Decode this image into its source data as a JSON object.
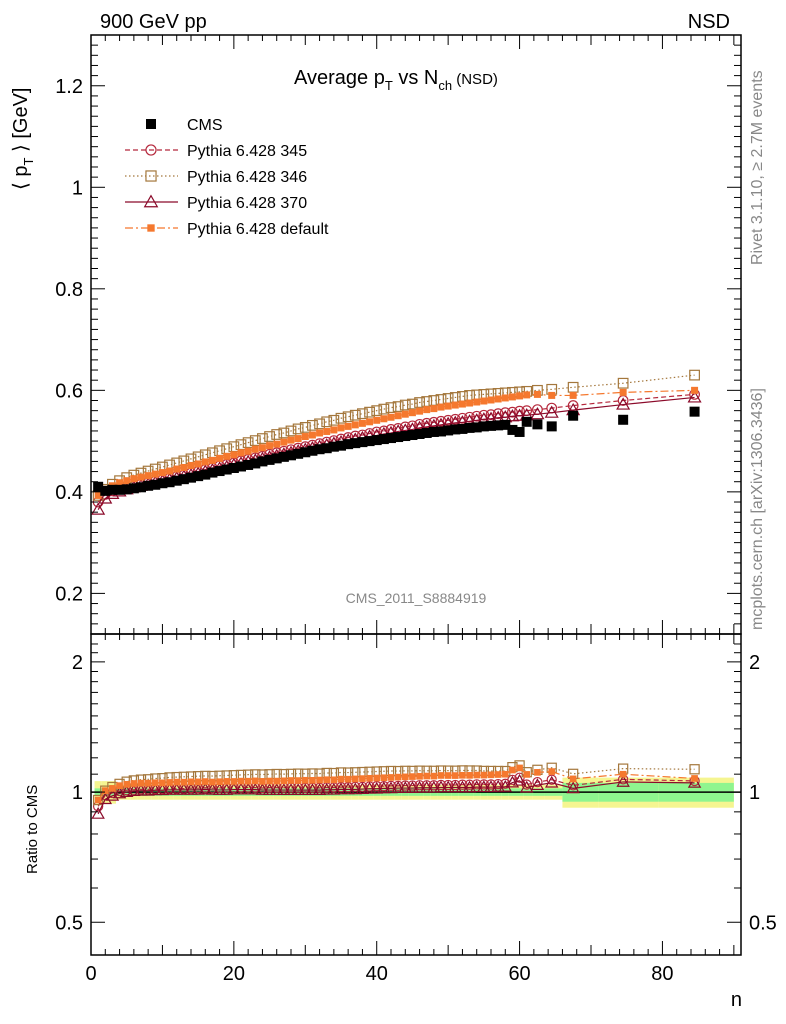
{
  "header": {
    "left": "900 GeV pp",
    "right": "NSD"
  },
  "side_text": {
    "rivet": "Rivet 3.1.10, ≥ 2.7M events",
    "mcplots": "mcplots.cern.ch [arXiv:1306.3436]"
  },
  "analysis_id": "CMS_2011_S8884919",
  "colors": {
    "cms": "#000000",
    "p345": "#b5283c",
    "p346": "#a4773c",
    "p370": "#8b0a2a",
    "pdef": "#f5782e",
    "band_green": "#8ff58f",
    "band_yellow": "#f5f591"
  },
  "chart_data": [
    {
      "type": "scatter",
      "title_main": "Average p",
      "title_sub1": "T",
      "title_mid": " vs N",
      "title_sub2": "ch",
      "title_tail": " (NSD)",
      "ylabel_main": "⟨ p",
      "ylabel_sub": "T",
      "ylabel_tail": " ⟩ [GeV]",
      "xlim": [
        0,
        91
      ],
      "ylim": [
        0.12,
        1.3
      ],
      "y_ticks": [
        0.2,
        0.4,
        0.6,
        0.8,
        1,
        1.2
      ],
      "y_tick_labels": [
        "0.2",
        "0.4",
        "0.6",
        "0.8",
        "1",
        "1.2"
      ],
      "legend_position": "top-left",
      "series": [
        {
          "name": "CMS",
          "marker": "filled-square",
          "x": [
            1,
            2,
            3,
            4,
            5,
            6,
            7,
            8,
            9,
            10,
            11,
            12,
            13,
            14,
            15,
            16,
            17,
            18,
            19,
            20,
            21,
            22,
            23,
            24,
            25,
            26,
            27,
            28,
            29,
            30,
            31,
            32,
            33,
            34,
            35,
            36,
            37,
            38,
            39,
            40,
            41,
            42,
            43,
            44,
            45,
            46,
            47,
            48,
            49,
            50,
            51,
            52,
            53,
            54,
            55,
            56,
            57,
            58,
            59,
            60,
            61,
            62.5,
            64.5,
            67.5,
            74.5,
            84.5
          ],
          "values": [
            0.41,
            0.402,
            0.404,
            0.404,
            0.405,
            0.407,
            0.409,
            0.412,
            0.414,
            0.417,
            0.419,
            0.422,
            0.425,
            0.428,
            0.431,
            0.434,
            0.438,
            0.441,
            0.444,
            0.447,
            0.45,
            0.453,
            0.456,
            0.46,
            0.463,
            0.466,
            0.469,
            0.472,
            0.475,
            0.478,
            0.481,
            0.484,
            0.486,
            0.489,
            0.491,
            0.494,
            0.496,
            0.498,
            0.5,
            0.502,
            0.504,
            0.506,
            0.508,
            0.51,
            0.512,
            0.514,
            0.516,
            0.518,
            0.519,
            0.521,
            0.523,
            0.524,
            0.526,
            0.527,
            0.529,
            0.53,
            0.531,
            0.532,
            0.522,
            0.518,
            0.538,
            0.533,
            0.529,
            0.55,
            0.542,
            0.558
          ]
        },
        {
          "name": "Pythia 6.428 345",
          "marker": "open-circle",
          "line": "dashed",
          "x": [
            1,
            2,
            3,
            4,
            5,
            6,
            7,
            8,
            9,
            10,
            11,
            12,
            13,
            14,
            15,
            16,
            17,
            18,
            19,
            20,
            21,
            22,
            23,
            24,
            25,
            26,
            27,
            28,
            29,
            30,
            31,
            32,
            33,
            34,
            35,
            36,
            37,
            38,
            39,
            40,
            41,
            42,
            43,
            44,
            45,
            46,
            47,
            48,
            49,
            50,
            51,
            52,
            53,
            54,
            55,
            56,
            57,
            58,
            59,
            60,
            61,
            62.5,
            64.5,
            67.5,
            74.5,
            84.5
          ],
          "values": [
            0.38,
            0.395,
            0.402,
            0.406,
            0.409,
            0.412,
            0.415,
            0.418,
            0.421,
            0.424,
            0.427,
            0.43,
            0.433,
            0.437,
            0.44,
            0.444,
            0.447,
            0.451,
            0.454,
            0.457,
            0.461,
            0.464,
            0.467,
            0.47,
            0.474,
            0.477,
            0.48,
            0.483,
            0.486,
            0.489,
            0.492,
            0.495,
            0.498,
            0.501,
            0.504,
            0.507,
            0.51,
            0.512,
            0.515,
            0.518,
            0.52,
            0.523,
            0.525,
            0.528,
            0.53,
            0.533,
            0.535,
            0.537,
            0.539,
            0.541,
            0.543,
            0.545,
            0.547,
            0.549,
            0.551,
            0.552,
            0.554,
            0.556,
            0.557,
            0.559,
            0.56,
            0.562,
            0.565,
            0.57,
            0.58,
            0.592
          ]
        },
        {
          "name": "Pythia 6.428 346",
          "marker": "open-square",
          "line": "dotted",
          "x": [
            1,
            2,
            3,
            4,
            5,
            6,
            7,
            8,
            9,
            10,
            11,
            12,
            13,
            14,
            15,
            16,
            17,
            18,
            19,
            20,
            21,
            22,
            23,
            24,
            25,
            26,
            27,
            28,
            29,
            30,
            31,
            32,
            33,
            34,
            35,
            36,
            37,
            38,
            39,
            40,
            41,
            42,
            43,
            44,
            45,
            46,
            47,
            48,
            49,
            50,
            51,
            52,
            53,
            54,
            55,
            56,
            57,
            58,
            59,
            60,
            61,
            62.5,
            64.5,
            67.5,
            74.5,
            84.5
          ],
          "values": [
            0.393,
            0.405,
            0.415,
            0.422,
            0.428,
            0.433,
            0.437,
            0.441,
            0.445,
            0.449,
            0.453,
            0.457,
            0.461,
            0.465,
            0.469,
            0.473,
            0.477,
            0.481,
            0.485,
            0.489,
            0.493,
            0.497,
            0.501,
            0.505,
            0.509,
            0.513,
            0.516,
            0.52,
            0.524,
            0.527,
            0.531,
            0.534,
            0.538,
            0.541,
            0.545,
            0.548,
            0.551,
            0.554,
            0.557,
            0.56,
            0.563,
            0.566,
            0.568,
            0.571,
            0.573,
            0.576,
            0.578,
            0.58,
            0.582,
            0.584,
            0.586,
            0.588,
            0.59,
            0.591,
            0.592,
            0.593,
            0.594,
            0.595,
            0.596,
            0.597,
            0.598,
            0.6,
            0.602,
            0.606,
            0.614,
            0.63
          ]
        },
        {
          "name": "Pythia 6.428 370",
          "marker": "open-triangle",
          "line": "solid",
          "x": [
            1,
            2,
            3,
            4,
            5,
            6,
            7,
            8,
            9,
            10,
            11,
            12,
            13,
            14,
            15,
            16,
            17,
            18,
            19,
            20,
            21,
            22,
            23,
            24,
            25,
            26,
            27,
            28,
            29,
            30,
            31,
            32,
            33,
            34,
            35,
            36,
            37,
            38,
            39,
            40,
            41,
            42,
            43,
            44,
            45,
            46,
            47,
            48,
            49,
            50,
            51,
            52,
            53,
            54,
            55,
            56,
            57,
            58,
            59,
            60,
            61,
            62.5,
            64.5,
            67.5,
            74.5,
            84.5
          ],
          "values": [
            0.365,
            0.387,
            0.396,
            0.401,
            0.405,
            0.409,
            0.412,
            0.415,
            0.418,
            0.421,
            0.424,
            0.427,
            0.43,
            0.433,
            0.436,
            0.44,
            0.443,
            0.446,
            0.449,
            0.453,
            0.456,
            0.459,
            0.462,
            0.465,
            0.468,
            0.471,
            0.474,
            0.477,
            0.48,
            0.483,
            0.486,
            0.489,
            0.492,
            0.495,
            0.498,
            0.501,
            0.503,
            0.506,
            0.509,
            0.511,
            0.514,
            0.516,
            0.519,
            0.521,
            0.523,
            0.526,
            0.528,
            0.53,
            0.532,
            0.534,
            0.536,
            0.537,
            0.539,
            0.541,
            0.543,
            0.544,
            0.546,
            0.547,
            0.549,
            0.55,
            0.551,
            0.553,
            0.556,
            0.561,
            0.572,
            0.586
          ]
        },
        {
          "name": "Pythia 6.428 default",
          "marker": "filled-small-square",
          "line": "dash-dot",
          "x": [
            1,
            2,
            3,
            4,
            5,
            6,
            7,
            8,
            9,
            10,
            11,
            12,
            13,
            14,
            15,
            16,
            17,
            18,
            19,
            20,
            21,
            22,
            23,
            24,
            25,
            26,
            27,
            28,
            29,
            30,
            31,
            32,
            33,
            34,
            35,
            36,
            37,
            38,
            39,
            40,
            41,
            42,
            43,
            44,
            45,
            46,
            47,
            48,
            49,
            50,
            51,
            52,
            53,
            54,
            55,
            56,
            57,
            58,
            59,
            60,
            61,
            62.5,
            64.5,
            67.5,
            74.5,
            84.5
          ],
          "values": [
            0.393,
            0.405,
            0.412,
            0.418,
            0.422,
            0.426,
            0.429,
            0.432,
            0.435,
            0.438,
            0.441,
            0.445,
            0.448,
            0.452,
            0.455,
            0.459,
            0.462,
            0.466,
            0.47,
            0.473,
            0.477,
            0.48,
            0.484,
            0.487,
            0.491,
            0.494,
            0.498,
            0.502,
            0.505,
            0.509,
            0.512,
            0.516,
            0.519,
            0.522,
            0.526,
            0.529,
            0.532,
            0.535,
            0.538,
            0.541,
            0.544,
            0.547,
            0.55,
            0.553,
            0.556,
            0.559,
            0.562,
            0.564,
            0.567,
            0.569,
            0.571,
            0.573,
            0.575,
            0.577,
            0.579,
            0.581,
            0.583,
            0.585,
            0.587,
            0.589,
            0.591,
            0.592,
            0.59,
            0.59,
            0.596,
            0.6
          ]
        }
      ]
    },
    {
      "type": "scatter",
      "ylabel": "Ratio to CMS",
      "xlabel": "n",
      "xlim": [
        0,
        91
      ],
      "ylim": [
        0.42,
        2.32
      ],
      "y_log": true,
      "x_ticks": [
        0,
        20,
        40,
        60,
        80
      ],
      "x_tick_labels": [
        "0",
        "20",
        "40",
        "60",
        "80"
      ],
      "y_ticks": [
        0.5,
        1,
        2
      ],
      "y_tick_labels": [
        "0.5",
        "1",
        "2"
      ],
      "uncertainty_bands": "green (stat) and yellow (total) around 1"
    }
  ]
}
